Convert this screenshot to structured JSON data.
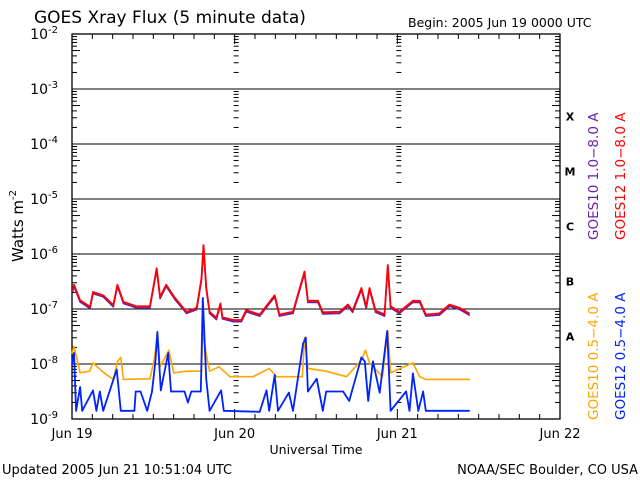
{
  "chart_data": {
    "type": "line",
    "title": "GOES Xray Flux (5 minute data)",
    "begin_label": "Begin:  2005 Jun 19 0000 UTC",
    "xlabel": "Universal Time",
    "ylabel": "Watts m",
    "ylabel_exponent": "-2",
    "yscale": "log",
    "ylim_log10": [
      -9,
      -2
    ],
    "xlim_hours": [
      0,
      72
    ],
    "x_ticks": [
      {
        "hours": 0,
        "label": "Jun 19"
      },
      {
        "hours": 24,
        "label": "Jun 20"
      },
      {
        "hours": 48,
        "label": "Jun 21"
      },
      {
        "hours": 72,
        "label": "Jun 22"
      }
    ],
    "y_ticks": [
      {
        "exp": -2,
        "label": "-2"
      },
      {
        "exp": -3,
        "label": "-3"
      },
      {
        "exp": -4,
        "label": "-4"
      },
      {
        "exp": -5,
        "label": "-5"
      },
      {
        "exp": -6,
        "label": "-6"
      },
      {
        "exp": -7,
        "label": "-7"
      },
      {
        "exp": -8,
        "label": "-8"
      },
      {
        "exp": -9,
        "label": "-9"
      }
    ],
    "y_tick_base": "10",
    "grid": "horizontal lines at each decade from 1e-8 to 1e-3",
    "flare_classes": [
      {
        "label": "X",
        "exp": -3.5
      },
      {
        "label": "M",
        "exp": -4.5
      },
      {
        "label": "C",
        "exp": -5.5
      },
      {
        "label": "B",
        "exp": -6.5
      },
      {
        "label": "A",
        "exp": -7.5
      }
    ],
    "series": [
      {
        "name": "GOES10 1.0-8.0 A",
        "legend": "GOES10 1.0−8.0 A",
        "color": "#6a1fb0",
        "hours": [
          0.1,
          0.3,
          1.2,
          2.65,
          3.1,
          4.6,
          6.1,
          6.7,
          7.6,
          9.5,
          11.5,
          12.5,
          13,
          13.9,
          15.2,
          16.9,
          18.4,
          19.1,
          19.4,
          19.8,
          20.3,
          21.3,
          21.9,
          22.2,
          23.8,
          25,
          25.7,
          27.7,
          29.9,
          30.6,
          32.6,
          34.3,
          34.8,
          36.3,
          37,
          39.5,
          40.7,
          41.4,
          42.7,
          43.4,
          43.9,
          44.8,
          46.1,
          46.6,
          47,
          48.3,
          50.3,
          51.3,
          52.2,
          54.2,
          55.7,
          57.2,
          58.6
        ],
        "log10_flux": [
          -6.68,
          -6.59,
          -6.87,
          -6.99,
          -6.72,
          -6.78,
          -6.96,
          -6.59,
          -6.9,
          -6.98,
          -6.98,
          -6.29,
          -6.81,
          -6.59,
          -6.83,
          -7.08,
          -7.01,
          -6.47,
          -5.87,
          -6.63,
          -7.08,
          -7.19,
          -6.93,
          -7.18,
          -7.23,
          -7.23,
          -7.05,
          -7.13,
          -6.78,
          -7.13,
          -7.08,
          -6.35,
          -6.88,
          -6.88,
          -7.09,
          -7.08,
          -6.95,
          -7.06,
          -6.65,
          -6.99,
          -6.65,
          -7.06,
          -7.13,
          -6.23,
          -6.98,
          -7.08,
          -6.88,
          -6.88,
          -7.13,
          -7.11,
          -6.95,
          -7.01,
          -7.11
        ]
      },
      {
        "name": "GOES12 1.0-8.0 A",
        "legend": "GOES12 1.0−8.0 A",
        "color": "#ff0000",
        "hours": [
          0.1,
          0.3,
          1.2,
          2.65,
          3.1,
          4.6,
          6.1,
          6.7,
          7.6,
          9.5,
          11.5,
          12.5,
          13,
          13.9,
          15.2,
          16.9,
          18.4,
          19.1,
          19.4,
          19.8,
          20.3,
          21.3,
          21.9,
          22.2,
          23.8,
          25,
          25.7,
          27.7,
          29.9,
          30.6,
          32.6,
          34.3,
          34.8,
          36.3,
          37,
          39.5,
          40.7,
          41.4,
          42.7,
          43.4,
          43.9,
          44.8,
          46.1,
          46.6,
          47,
          48.3,
          50.3,
          51.3,
          52.2,
          54.2,
          55.7,
          57.2,
          58.6
        ],
        "log10_flux": [
          -6.65,
          -6.56,
          -6.84,
          -6.96,
          -6.69,
          -6.75,
          -6.93,
          -6.56,
          -6.87,
          -6.95,
          -6.95,
          -6.26,
          -6.78,
          -6.56,
          -6.8,
          -7.05,
          -6.98,
          -6.44,
          -5.84,
          -6.6,
          -7.05,
          -7.16,
          -6.9,
          -7.15,
          -7.2,
          -7.2,
          -7.02,
          -7.1,
          -6.75,
          -7.1,
          -7.05,
          -6.32,
          -6.85,
          -6.85,
          -7.06,
          -7.05,
          -6.92,
          -7.03,
          -6.62,
          -6.96,
          -6.62,
          -7.03,
          -7.1,
          -6.2,
          -6.95,
          -7.05,
          -6.85,
          -6.85,
          -7.1,
          -7.08,
          -6.92,
          -6.98,
          -7.08
        ]
      },
      {
        "name": "GOES10 0.5-4.0 A",
        "legend": "GOES10 0.5−4.0 A",
        "color": "#ffa500",
        "hours": [
          0,
          0.3,
          1.2,
          2.6,
          3.1,
          4.6,
          6.1,
          6.7,
          7.2,
          7.6,
          11.5,
          12.2,
          12.6,
          13,
          14.3,
          15,
          16.9,
          19.1,
          19.3,
          19.8,
          20.3,
          21.7,
          23.3,
          26.7,
          29.1,
          30.2,
          34,
          34.3,
          34.8,
          37.5,
          40.5,
          42.7,
          43.3,
          43.9,
          45.8,
          46.6,
          47,
          50.3,
          51.3,
          52.2,
          58.6
        ],
        "log10_flux": [
          -7.8,
          -7.68,
          -8.16,
          -8.13,
          -7.98,
          -8.15,
          -8.28,
          -7.96,
          -7.88,
          -8.28,
          -8.27,
          -7.87,
          -7.41,
          -8.05,
          -7.75,
          -8.16,
          -8.13,
          -8.13,
          -7.4,
          -7.82,
          -8.13,
          -8.05,
          -8.23,
          -8.23,
          -8.08,
          -8.23,
          -8.23,
          -7.52,
          -8.08,
          -8.13,
          -8.23,
          -7.93,
          -7.75,
          -7.98,
          -8.23,
          -7.4,
          -8.16,
          -7.98,
          -8.23,
          -8.28,
          -8.28
        ]
      },
      {
        "name": "GOES12 0.5-4.0 A",
        "legend": "GOES12 0.5−4.0 A",
        "color": "#0022ff",
        "hours": [
          0,
          0.3,
          0.6,
          1.2,
          1.5,
          3.1,
          3.6,
          4.1,
          4.6,
          6.6,
          7.2,
          9.2,
          9.4,
          10.1,
          11.1,
          11.8,
          12.3,
          12.6,
          13.1,
          14.2,
          14.6,
          16.6,
          17.1,
          17.6,
          19,
          19.3,
          19.8,
          20.3,
          22,
          22.4,
          27.7,
          28.7,
          29.1,
          29.9,
          30.4,
          32,
          32.6,
          34.1,
          34.5,
          34.8,
          36.1,
          37,
          37.5,
          40,
          40.9,
          42.7,
          43.2,
          43.7,
          44.4,
          45.4,
          46.5,
          47,
          49.3,
          49.8,
          50.3,
          51.1,
          51.8,
          52.2,
          58.6
        ],
        "log10_flux": [
          -8.0,
          -7.8,
          -8.85,
          -8.42,
          -8.85,
          -8.48,
          -8.85,
          -8.5,
          -8.85,
          -8.1,
          -8.85,
          -8.85,
          -8.5,
          -8.5,
          -8.85,
          -8.5,
          -7.95,
          -7.42,
          -8.48,
          -7.8,
          -8.5,
          -8.5,
          -8.7,
          -8.5,
          -8.5,
          -6.8,
          -8.27,
          -8.85,
          -8.48,
          -8.85,
          -8.87,
          -8.48,
          -8.85,
          -8.2,
          -8.85,
          -8.52,
          -8.85,
          -7.63,
          -7.52,
          -8.5,
          -8.27,
          -8.85,
          -8.5,
          -8.5,
          -8.67,
          -7.88,
          -7.95,
          -8.67,
          -7.95,
          -8.52,
          -7.4,
          -8.85,
          -8.5,
          -8.85,
          -8.17,
          -8.85,
          -8.5,
          -8.85,
          -8.85
        ]
      }
    ]
  },
  "footer": {
    "updated": "Updated 2005 Jun 21 10:51:04 UTC",
    "credit": "NOAA/SEC Boulder, CO USA"
  }
}
